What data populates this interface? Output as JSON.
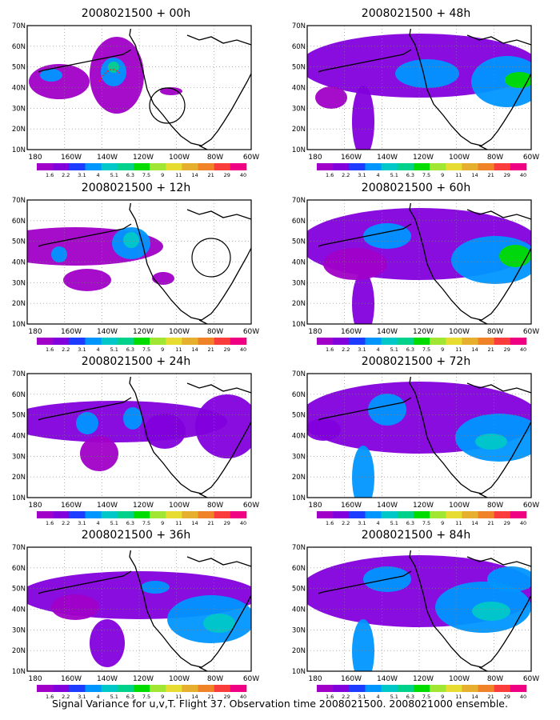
{
  "figure": {
    "caption": "Signal Variance for u,v,T. Flight 37. Observation time 2008021500. 2008021000 ensemble."
  },
  "axes": {
    "lat_labels": [
      "70N",
      "60N",
      "50N",
      "40N",
      "30N",
      "20N",
      "10N"
    ],
    "lon_labels": [
      "180",
      "160W",
      "140W",
      "120W",
      "100W",
      "80W",
      "60W"
    ]
  },
  "colorbar": {
    "labels": [
      "1.6",
      "2.2",
      "3.1",
      "4",
      "5.1",
      "6.3",
      "7.5",
      "9",
      "11",
      "14",
      "21",
      "29",
      "40"
    ],
    "colors": [
      "#a000c8",
      "#8200dc",
      "#1e3cff",
      "#0096ff",
      "#00c8c8",
      "#00d28c",
      "#00dc00",
      "#a0e632",
      "#e6dc32",
      "#e6af2d",
      "#f08228",
      "#fa3c3c",
      "#f00082"
    ]
  },
  "map_style": {
    "coastline_color": "#000000",
    "grid": true,
    "grid_style": "dotted"
  },
  "panels": [
    {
      "title": "2008021500 + 00h",
      "column": "left",
      "row": 1
    },
    {
      "title": "2008021500 + 12h",
      "column": "left",
      "row": 2
    },
    {
      "title": "2008021500 + 24h",
      "column": "left",
      "row": 3
    },
    {
      "title": "2008021500 + 36h",
      "column": "left",
      "row": 4
    },
    {
      "title": "2008021500 + 48h",
      "column": "right",
      "row": 1
    },
    {
      "title": "2008021500 + 60h",
      "column": "right",
      "row": 2
    },
    {
      "title": "2008021500 + 72h",
      "column": "right",
      "row": 3
    },
    {
      "title": "2008021500 + 84h",
      "column": "right",
      "row": 4
    }
  ]
}
